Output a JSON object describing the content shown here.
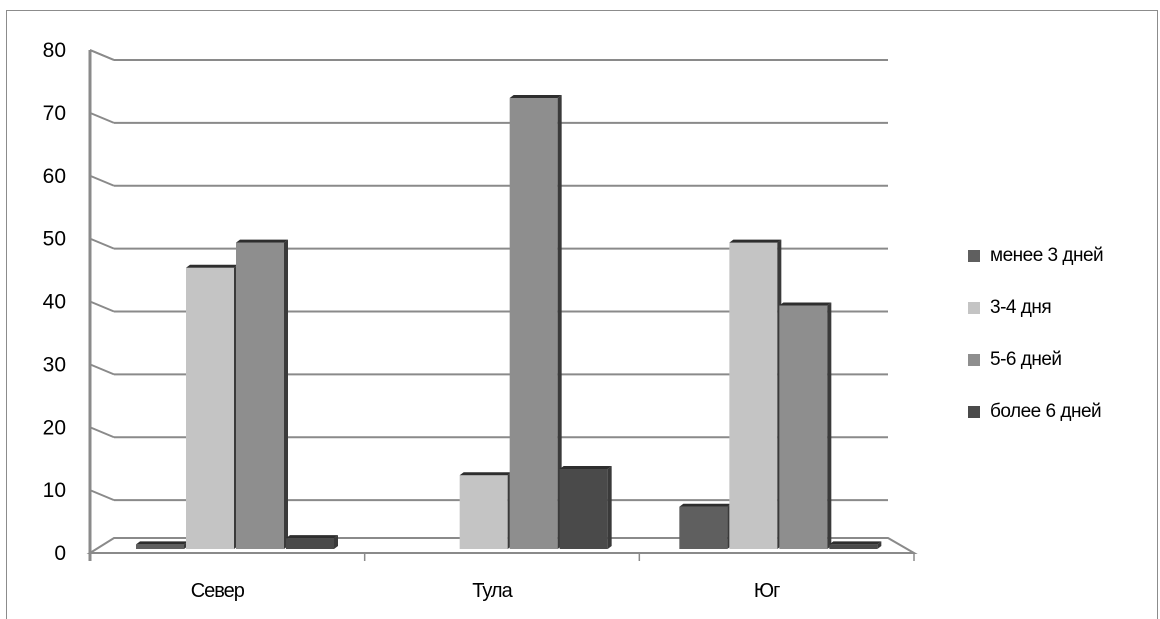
{
  "chart_data": {
    "type": "bar",
    "categories": [
      "Север",
      "Тула",
      "Юг"
    ],
    "series": [
      {
        "name": "менее 3 дней",
        "values": [
          2,
          0,
          8
        ],
        "color": "#5f5f5f"
      },
      {
        "name": "3-4 дня",
        "values": [
          46,
          13,
          50
        ],
        "color": "#c4c4c4"
      },
      {
        "name": "5-6 дней",
        "values": [
          50,
          73,
          40
        ],
        "color": "#8e8e8e"
      },
      {
        "name": "более 6 дней",
        "values": [
          3,
          14,
          2
        ],
        "color": "#4a4a4a"
      }
    ],
    "ylim": [
      0,
      80
    ],
    "yticks": [
      "0",
      "10",
      "20",
      "30",
      "40",
      "50",
      "60",
      "70",
      "80"
    ],
    "grid": true,
    "legend_position": "right",
    "title": "",
    "xlabel": "",
    "ylabel": ""
  }
}
